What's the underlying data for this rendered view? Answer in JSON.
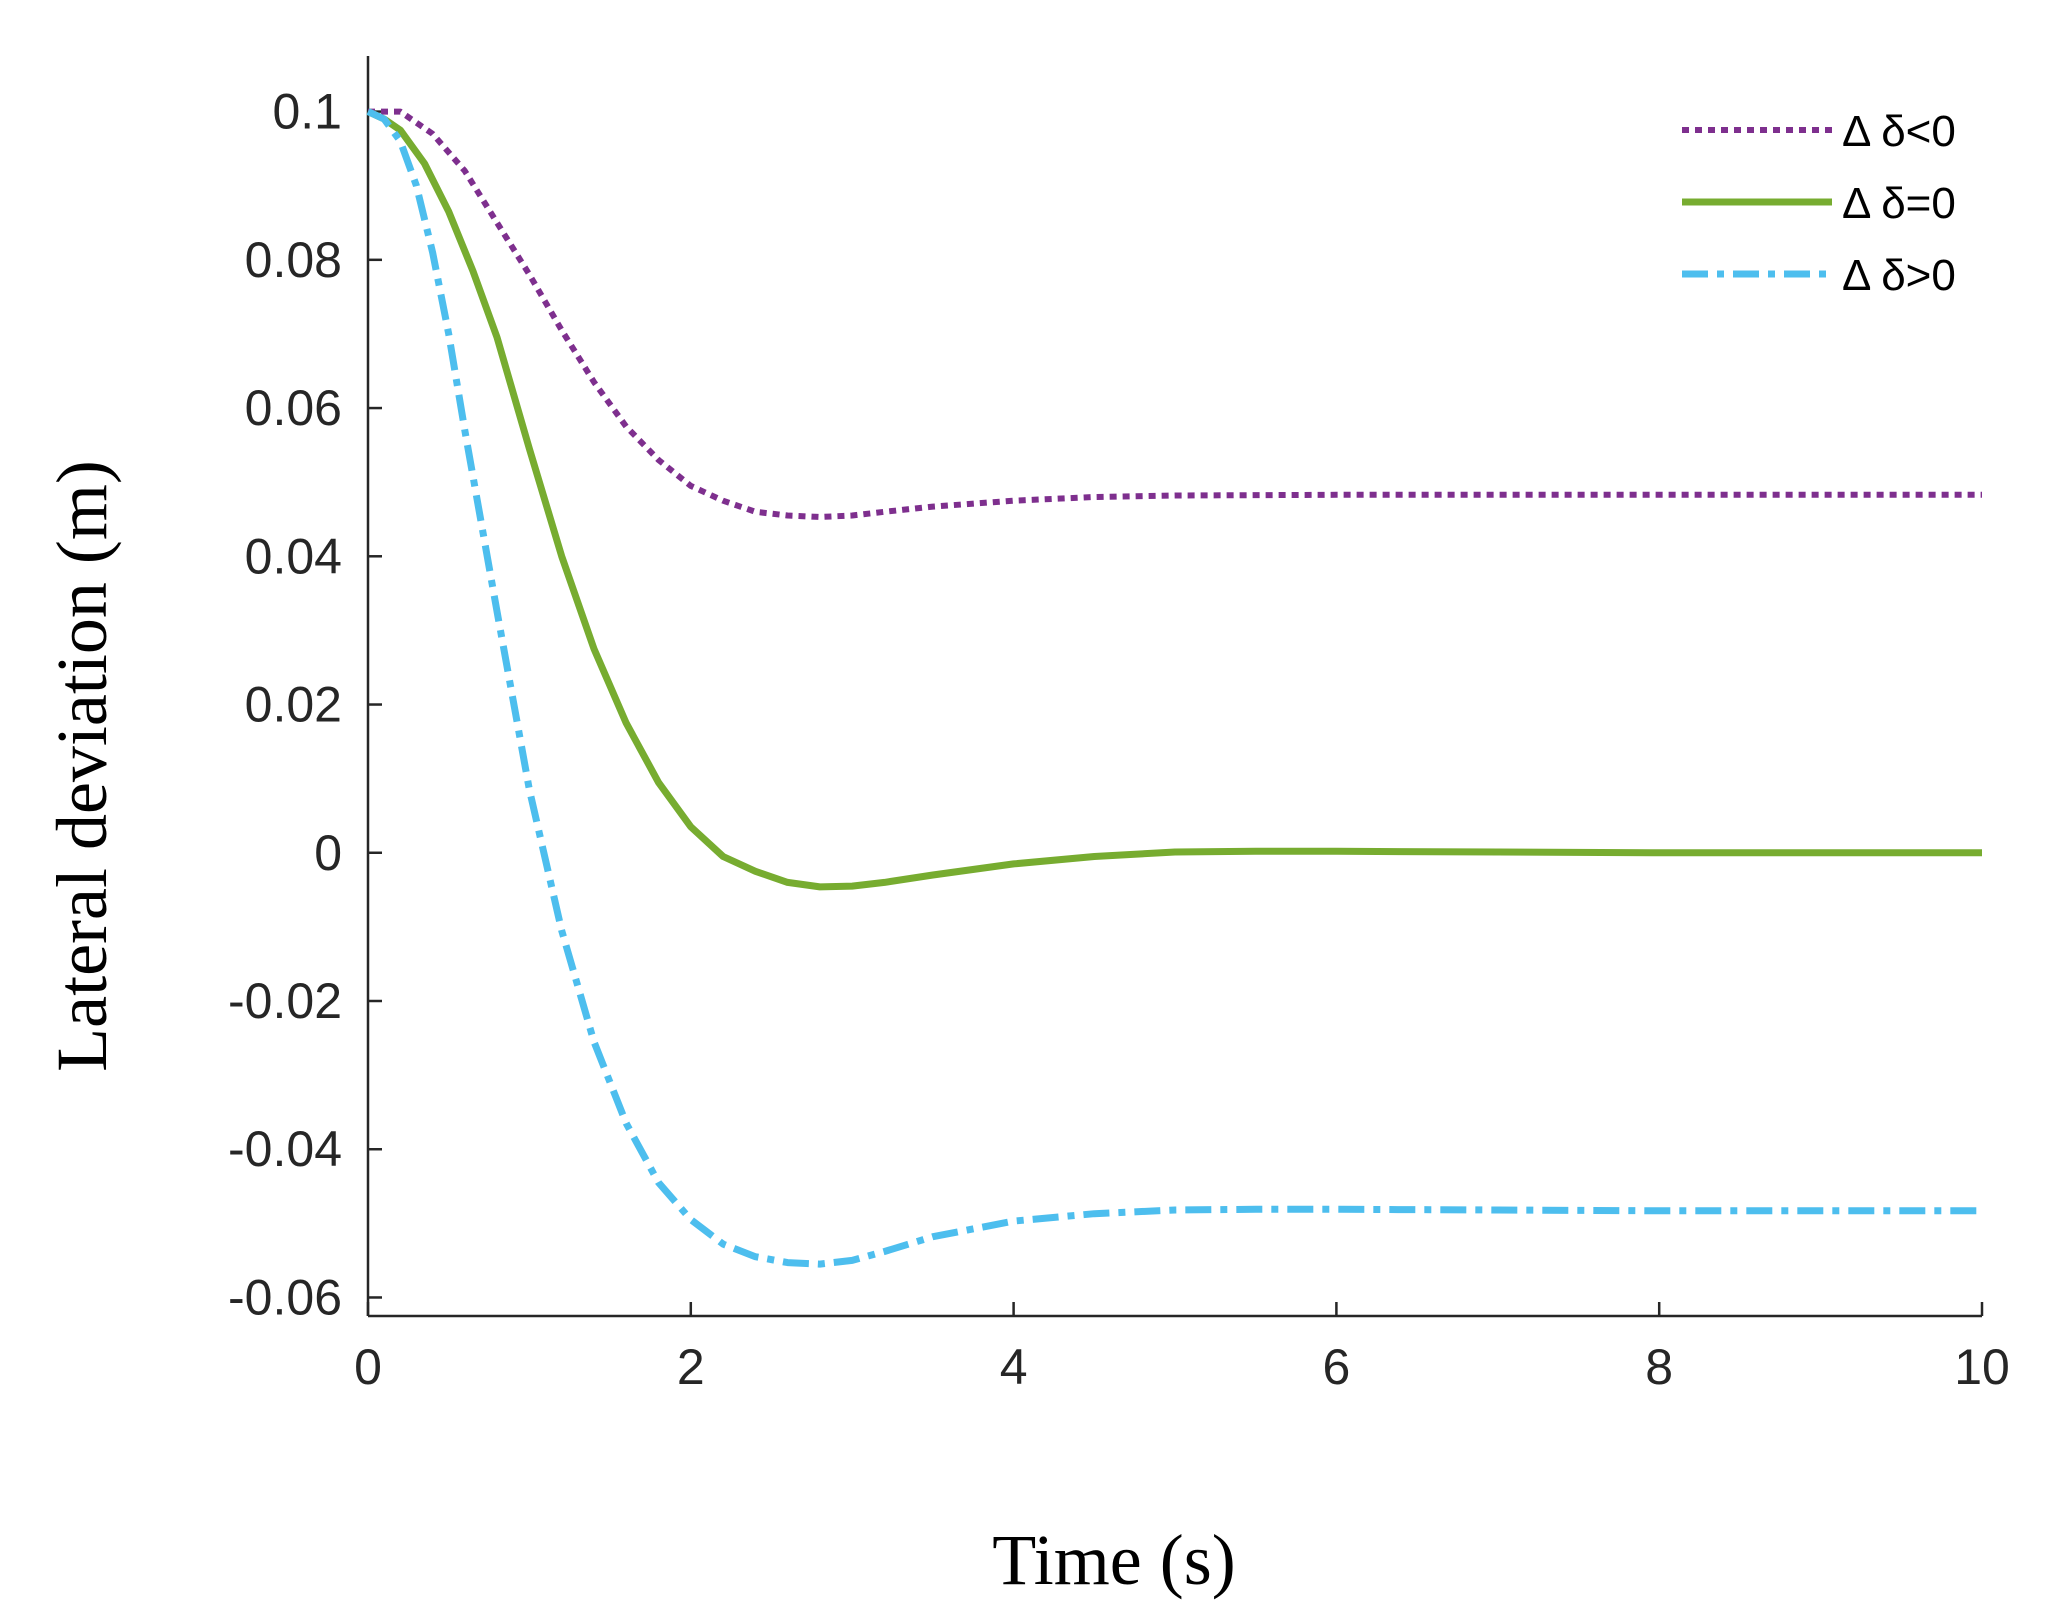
{
  "chart_data": {
    "type": "line",
    "title": "",
    "xlabel": "Time (s)",
    "ylabel": "Lateral deviation (m)",
    "xlim": [
      0,
      10
    ],
    "ylim": [
      -0.0625,
      0.1075
    ],
    "x_ticks": [
      0,
      2,
      4,
      6,
      8,
      10
    ],
    "x_tick_labels": [
      "0",
      "2",
      "4",
      "6",
      "8",
      "10"
    ],
    "y_ticks": [
      0.1,
      0.08,
      0.06,
      0.04,
      0.02,
      0,
      -0.02,
      -0.04,
      -0.06
    ],
    "y_tick_labels": [
      "0.1",
      "0.08",
      "0.06",
      "0.04",
      "0.02",
      "0",
      "-0.02",
      "-0.04",
      "-0.06"
    ],
    "grid": false,
    "legend_position": "top-right",
    "series": [
      {
        "name": "Δ δ<0",
        "color": "#7E2F8E",
        "line_style": "dotted",
        "x": [
          0,
          0.2,
          0.4,
          0.6,
          0.8,
          1.0,
          1.2,
          1.4,
          1.6,
          1.8,
          2.0,
          2.2,
          2.4,
          2.6,
          2.8,
          3.0,
          3.2,
          3.5,
          4.0,
          4.5,
          5.0,
          6.0,
          7.0,
          8.0,
          9.0,
          10.0
        ],
        "values": [
          0.1,
          0.1,
          0.097,
          0.092,
          0.085,
          0.078,
          0.0705,
          0.0635,
          0.0575,
          0.053,
          0.0495,
          0.0475,
          0.046,
          0.0455,
          0.0453,
          0.0455,
          0.046,
          0.0467,
          0.0475,
          0.048,
          0.0482,
          0.0483,
          0.0483,
          0.0483,
          0.0483,
          0.0483
        ]
      },
      {
        "name": "Δ δ=0",
        "color": "#77AC30",
        "line_style": "solid",
        "x": [
          0,
          0.1,
          0.2,
          0.35,
          0.5,
          0.65,
          0.8,
          1.0,
          1.2,
          1.4,
          1.6,
          1.8,
          2.0,
          2.2,
          2.4,
          2.6,
          2.8,
          3.0,
          3.2,
          3.5,
          4.0,
          4.5,
          5.0,
          5.5,
          6.0,
          7.0,
          8.0,
          9.0,
          10.0
        ],
        "values": [
          0.1,
          0.099,
          0.0975,
          0.093,
          0.0865,
          0.0785,
          0.0695,
          0.0545,
          0.04,
          0.0275,
          0.0175,
          0.0095,
          0.0035,
          -0.0005,
          -0.0025,
          -0.004,
          -0.0046,
          -0.0045,
          -0.004,
          -0.003,
          -0.0015,
          -0.0005,
          0.0001,
          0.0002,
          0.0002,
          0.0001,
          0.0,
          0.0,
          0.0
        ]
      },
      {
        "name": "Δ δ>0",
        "color": "#4DBEEE",
        "line_style": "dashdot",
        "x": [
          0,
          0.1,
          0.2,
          0.3,
          0.4,
          0.5,
          0.6,
          0.8,
          1.0,
          1.2,
          1.4,
          1.6,
          1.8,
          2.0,
          2.2,
          2.4,
          2.6,
          2.8,
          3.0,
          3.2,
          3.5,
          4.0,
          4.5,
          5.0,
          5.5,
          6.0,
          7.0,
          8.0,
          9.0,
          10.0
        ],
        "values": [
          0.1,
          0.099,
          0.096,
          0.09,
          0.081,
          0.07,
          0.057,
          0.0325,
          0.0085,
          -0.0105,
          -0.0255,
          -0.0365,
          -0.0445,
          -0.0495,
          -0.0528,
          -0.0545,
          -0.0553,
          -0.0555,
          -0.055,
          -0.0538,
          -0.0518,
          -0.0497,
          -0.0487,
          -0.0482,
          -0.0481,
          -0.0481,
          -0.0482,
          -0.0483,
          -0.0483,
          -0.0483
        ]
      }
    ]
  }
}
